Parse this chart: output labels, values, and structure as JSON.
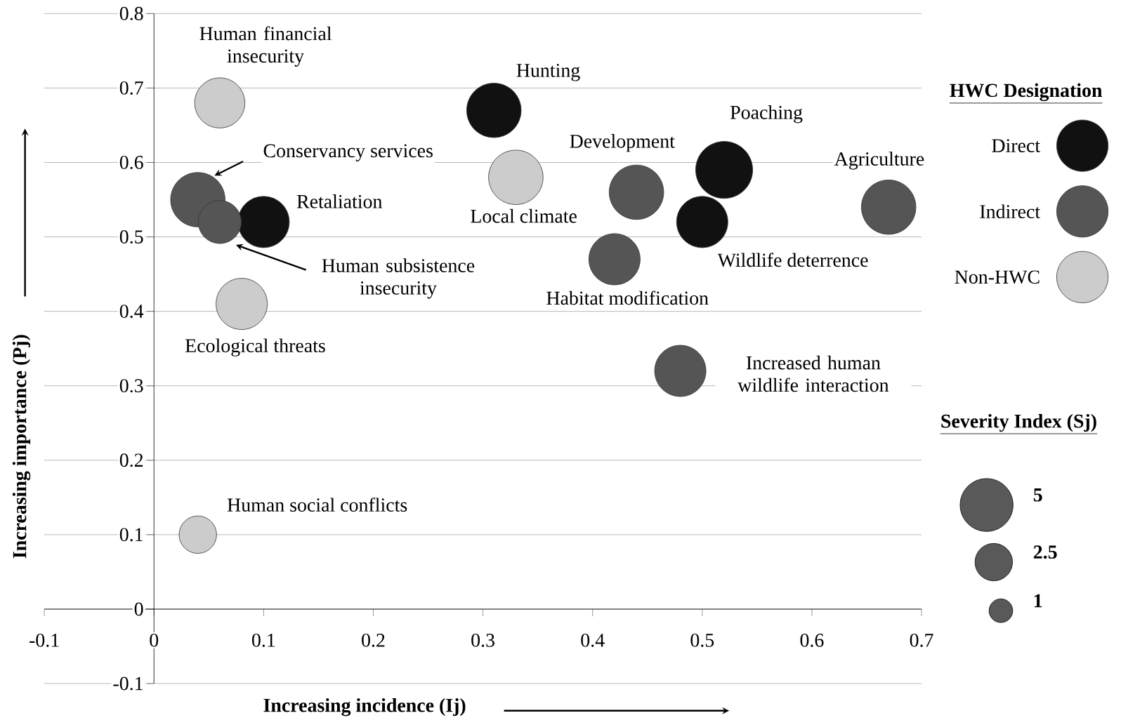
{
  "chart_data": {
    "type": "bubble",
    "xlabel": "Increasing incidence (Ij)",
    "ylabel": "Increasing importance (Pj)",
    "legend_title": "HWC Designation",
    "xlim": [
      -0.1,
      0.7
    ],
    "ylim": [
      -0.1,
      0.8
    ],
    "xticks": [
      -0.1,
      0,
      0.1,
      0.2,
      0.3,
      0.4,
      0.5,
      0.6,
      0.7
    ],
    "yticks": [
      -0.1,
      0,
      0.1,
      0.2,
      0.3,
      0.4,
      0.5,
      0.6,
      0.7,
      0.8
    ],
    "grid": "y",
    "legend": "right",
    "size_legend": [
      5,
      2.5,
      1
    ],
    "series": [
      {
        "name": "Direct",
        "color": "#111111",
        "x": [
          0.31,
          0.1,
          0.52,
          0.5
        ],
        "values": [
          0.67,
          0.52,
          0.59,
          0.52
        ],
        "sizes": [
          5.3,
          4.7,
          5.8,
          4.7
        ]
      },
      {
        "name": "Indirect",
        "color": "#555555",
        "x": [
          0.04,
          0.06,
          0.44,
          0.67,
          0.42,
          0.48
        ],
        "values": [
          0.55,
          0.52,
          0.56,
          0.54,
          0.47,
          0.32
        ],
        "sizes": [
          5.3,
          3.3,
          5.3,
          5.3,
          4.7,
          4.7
        ]
      },
      {
        "name": "Non-HWC",
        "color": "#cccccc",
        "x": [
          0.06,
          0.33,
          0.08,
          0.04
        ],
        "values": [
          0.68,
          0.58,
          0.41,
          0.1
        ],
        "sizes": [
          4.5,
          5.3,
          4.7,
          2.5
        ]
      }
    ],
    "annotations": [
      {
        "text": "Hunting",
        "x": 0.31,
        "y": 0.67
      },
      {
        "text": "Retaliation",
        "x": 0.1,
        "y": 0.52
      },
      {
        "text": "Poaching",
        "x": 0.52,
        "y": 0.59
      },
      {
        "text": "Wildlife deterrence",
        "x": 0.5,
        "y": 0.52
      },
      "Conservancy services",
      "Human subsistence insecurity",
      {
        "text": "Development",
        "x": 0.44,
        "y": 0.56
      },
      {
        "text": "Agriculture",
        "x": 0.67,
        "y": 0.54
      },
      {
        "text": "Habitat modification",
        "x": 0.42,
        "y": 0.47
      },
      {
        "text": "Increased human wildlife interaction",
        "x": 0.48,
        "y": 0.32
      },
      {
        "text": "Human financial insecurity",
        "x": 0.06,
        "y": 0.68
      },
      {
        "text": "Local climate",
        "x": 0.33,
        "y": 0.58
      },
      {
        "text": "Ecological threats",
        "x": 0.08,
        "y": 0.41
      },
      {
        "text": "Human social conflicts",
        "x": 0.04,
        "y": 0.1
      },
      "Severity Index (Sj)"
    ]
  }
}
